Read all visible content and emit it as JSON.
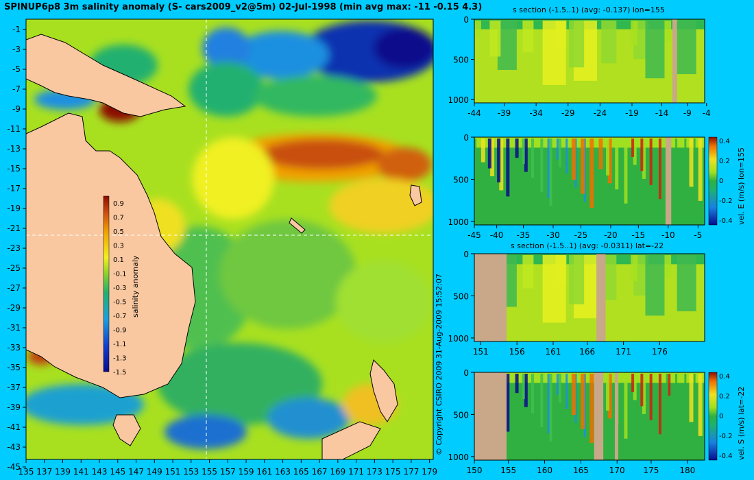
{
  "title": "SPINUP6p8 3m salinity anomaly (S- cars2009_v2@5m) 02-Jul-1998 (min avg max: -11 -0.15 4.3)",
  "copyright": "© Copyright CSIRO 2009   31-Aug-2009 15:52:07",
  "map": {
    "lon_ticks": [
      "135",
      "137",
      "139",
      "141",
      "143",
      "145",
      "147",
      "149",
      "151",
      "153",
      "155",
      "157",
      "159",
      "161",
      "163",
      "165",
      "167",
      "169",
      "171",
      "173",
      "175",
      "177",
      "179"
    ],
    "lat_ticks": [
      "-1",
      "-3",
      "-5",
      "-7",
      "-9",
      "-11",
      "-13",
      "-15",
      "-17",
      "-19",
      "-21",
      "-23",
      "-25",
      "-27",
      "-29",
      "-31",
      "-33",
      "-35",
      "-37",
      "-39",
      "-41",
      "-43",
      "-45"
    ],
    "colorbar_label": "salinity anomaly",
    "colorbar_ticks": [
      "0.9",
      "0.7",
      "0.5",
      "0.3",
      "0.1",
      "-0.1",
      "-0.3",
      "-0.5",
      "-0.7",
      "-0.9",
      "-1.1",
      "-1.3",
      "-1.5"
    ],
    "section_lon": 155,
    "section_lat": -22
  },
  "panels": [
    {
      "title": "s section (-1.5..1) (avg: -0.137) lon=155",
      "x_ticks": [
        "-44",
        "-39",
        "-34",
        "-29",
        "-24",
        "-19",
        "-14",
        "-9",
        "-4"
      ],
      "y_ticks": [
        "0",
        "500",
        "1000"
      ],
      "side_label": "",
      "cbar_ticks": []
    },
    {
      "title": "",
      "x_ticks": [
        "-45",
        "-40",
        "-35",
        "-30",
        "-25",
        "-20",
        "-15",
        "-10",
        "-5"
      ],
      "y_ticks": [
        "0",
        "500",
        "1000"
      ],
      "side_label": "vel. E (m/s) lon=155",
      "cbar_ticks": [
        "0.4",
        "0.2",
        "0",
        "-0.2",
        "-0.4"
      ]
    },
    {
      "title": "s section (-1.5..1) (avg: -0.0311) lat=-22",
      "x_ticks": [
        "151",
        "156",
        "161",
        "166",
        "171",
        "176"
      ],
      "y_ticks": [
        "0",
        "500",
        "1000"
      ],
      "side_label": "",
      "cbar_ticks": []
    },
    {
      "title": "",
      "x_ticks": [
        "150",
        "155",
        "160",
        "165",
        "170",
        "175",
        "180"
      ],
      "y_ticks": [
        "0",
        "500",
        "1000"
      ],
      "side_label": "vel. S (m/s) lat=-22",
      "cbar_ticks": [
        "0.4",
        "0.2",
        "0",
        "-0.2",
        "-0.4"
      ]
    }
  ],
  "colors": {
    "background": "#00ccff",
    "land": "#f9c8a0",
    "section_land": "#c8a888",
    "ocean_base": "#a8e020"
  }
}
